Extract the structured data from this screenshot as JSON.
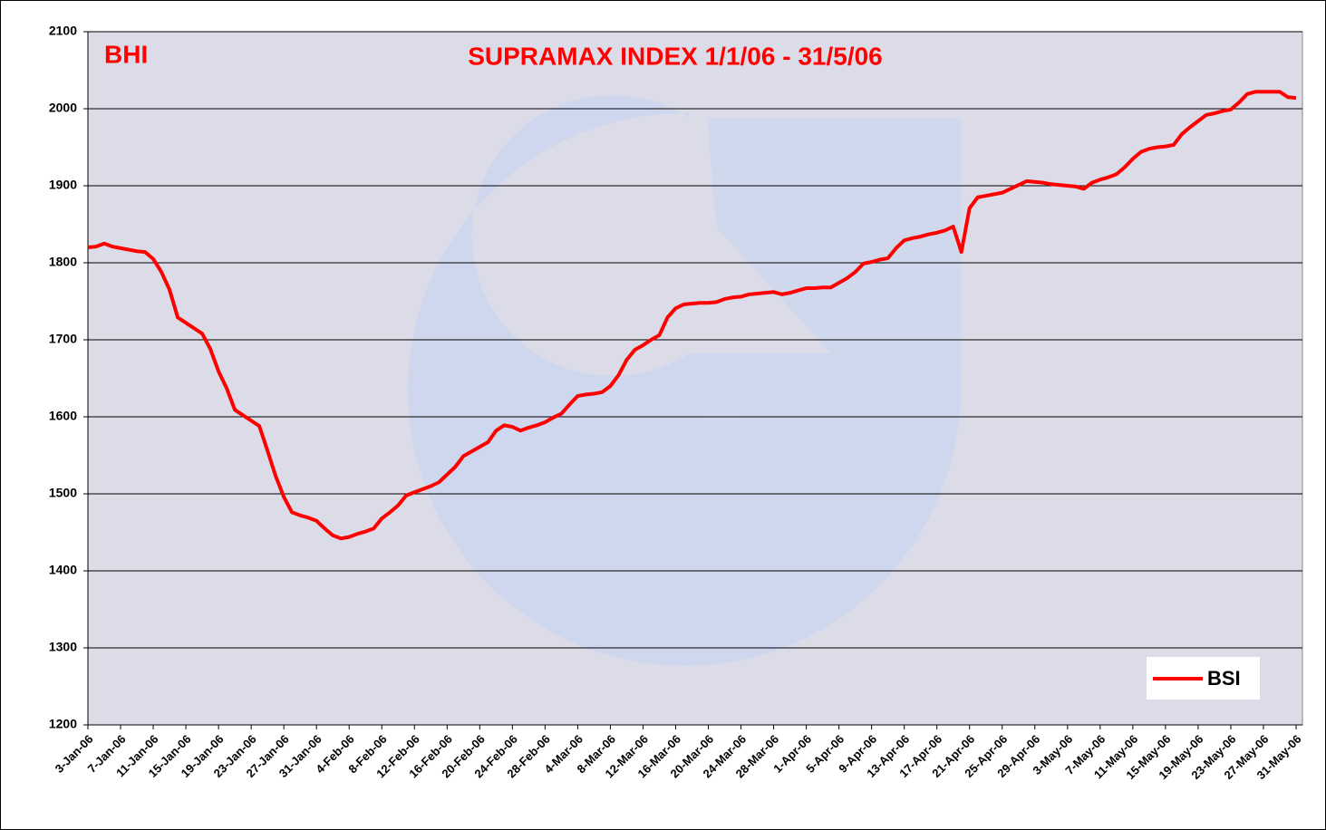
{
  "chart_data": {
    "type": "line",
    "title": "SUPRAMAX INDEX 1/1/06 - 31/5/06",
    "annotation": "BHI",
    "categories": [
      "3-Jan-06",
      null,
      null,
      null,
      "7-Jan-06",
      null,
      null,
      null,
      "11-Jan-06",
      null,
      null,
      null,
      "15-Jan-06",
      null,
      null,
      null,
      "19-Jan-06",
      null,
      null,
      null,
      "23-Jan-06",
      null,
      null,
      null,
      "27-Jan-06",
      null,
      null,
      null,
      "31-Jan-06",
      null,
      null,
      null,
      "4-Feb-06",
      null,
      null,
      null,
      "8-Feb-06",
      null,
      null,
      null,
      "12-Feb-06",
      null,
      null,
      null,
      "16-Feb-06",
      null,
      null,
      null,
      "20-Feb-06",
      null,
      null,
      null,
      "24-Feb-06",
      null,
      null,
      null,
      "28-Feb-06",
      null,
      null,
      null,
      "4-Mar-06",
      null,
      null,
      null,
      "8-Mar-06",
      null,
      null,
      null,
      "12-Mar-06",
      null,
      null,
      null,
      "16-Mar-06",
      null,
      null,
      null,
      "20-Mar-06",
      null,
      null,
      null,
      "24-Mar-06",
      null,
      null,
      null,
      "28-Mar-06",
      null,
      null,
      null,
      "1-Apr-06",
      null,
      null,
      null,
      "5-Apr-06",
      null,
      null,
      null,
      "9-Apr-06",
      null,
      null,
      null,
      "13-Apr-06",
      null,
      null,
      null,
      "17-Apr-06",
      null,
      null,
      null,
      "21-Apr-06",
      null,
      null,
      null,
      "25-Apr-06",
      null,
      null,
      null,
      "29-Apr-06",
      null,
      null,
      null,
      "3-May-06",
      null,
      null,
      null,
      "7-May-06",
      null,
      null,
      null,
      "11-May-06",
      null,
      null,
      null,
      "15-May-06",
      null,
      null,
      null,
      "19-May-06",
      null,
      null,
      null,
      "23-May-06",
      null,
      null,
      null,
      "27-May-06",
      null,
      null,
      null,
      "31-May-06"
    ],
    "series": [
      {
        "name": "BSI",
        "color": "#ff0000",
        "values": [
          1820,
          1821,
          1825,
          1821,
          1819,
          1817,
          1815,
          1814,
          1805,
          1788,
          1765,
          1729,
          1722,
          1715,
          1708,
          1688,
          1659,
          1637,
          1609,
          1602,
          1595,
          1588,
          1556,
          1523,
          1496,
          1476,
          1472,
          1469,
          1465,
          1455,
          1446,
          1442,
          1444,
          1448,
          1451,
          1455,
          1468,
          1476,
          1485,
          1498,
          1502,
          1506,
          1510,
          1515,
          1525,
          1535,
          1549,
          1555,
          1561,
          1567,
          1582,
          1589,
          1587,
          1582,
          1586,
          1589,
          1593,
          1599,
          1604,
          1616,
          1627,
          1629,
          1630,
          1632,
          1640,
          1654,
          1674,
          1687,
          1693,
          1700,
          1706,
          1729,
          1741,
          1746,
          1747,
          1748,
          1748,
          1749,
          1753,
          1755,
          1756,
          1759,
          1760,
          1761,
          1762,
          1759,
          1761,
          1764,
          1767,
          1767,
          1768,
          1768,
          1774,
          1780,
          1788,
          1799,
          1801,
          1804,
          1806,
          1819,
          1829,
          1832,
          1834,
          1837,
          1839,
          1842,
          1847,
          1814,
          1871,
          1885,
          1887,
          1889,
          1891,
          1896,
          1901,
          1906,
          1905,
          1904,
          1902,
          1901,
          1900,
          1899,
          1896,
          1904,
          1908,
          1911,
          1915,
          1924,
          1935,
          1944,
          1948,
          1950,
          1951,
          1953,
          1967,
          1976,
          1984,
          1992,
          1994,
          1997,
          1999,
          2008,
          2019,
          2022,
          2022,
          2022,
          2022,
          2015,
          2014
        ]
      }
    ],
    "ylim": [
      1200,
      2100
    ],
    "yticks": [
      1200,
      1300,
      1400,
      1500,
      1600,
      1700,
      1800,
      1900,
      2000,
      2100
    ],
    "grid": true,
    "legend": "lower right"
  }
}
